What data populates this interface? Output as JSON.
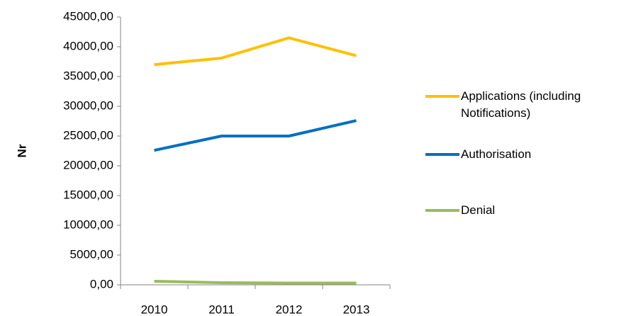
{
  "chart_data": {
    "type": "line",
    "y_label": "Nr",
    "categories": [
      "2010",
      "2011",
      "2012",
      "2013"
    ],
    "series": [
      {
        "name": "Applications (including Notifications)",
        "color": "#ffc000",
        "values": [
          37000,
          38100,
          41500,
          38500
        ]
      },
      {
        "name": "Authorisation",
        "color": "#0070c0",
        "values": [
          22600,
          25000,
          25000,
          27600
        ]
      },
      {
        "name": "Denial",
        "color": "#9bbb59",
        "values": [
          600,
          350,
          300,
          300
        ]
      }
    ],
    "ylim": [
      0,
      45000
    ],
    "yticks": [
      {
        "value": 0,
        "label": "0,00"
      },
      {
        "value": 5000,
        "label": "5000,00"
      },
      {
        "value": 10000,
        "label": "10000,00"
      },
      {
        "value": 15000,
        "label": "15000,00"
      },
      {
        "value": 20000,
        "label": "20000,00"
      },
      {
        "value": 25000,
        "label": "25000,00"
      },
      {
        "value": 30000,
        "label": "30000,00"
      },
      {
        "value": 35000,
        "label": "35000,00"
      },
      {
        "value": 40000,
        "label": "40000,00"
      },
      {
        "value": 45000,
        "label": "45000,00"
      }
    ],
    "legend": "right"
  }
}
